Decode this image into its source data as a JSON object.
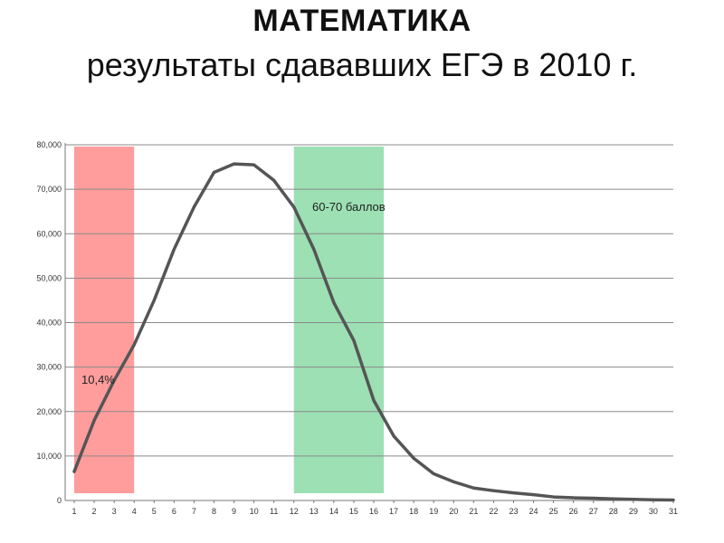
{
  "page": {
    "title": "МАТЕМАТИКА",
    "subtitle": "результаты сдававших ЕГЭ в 2010 г."
  },
  "chart_data": {
    "type": "line",
    "title": "МАТЕМАТИКА",
    "subtitle": "результаты сдававших ЕГЭ в 2010 г.",
    "xlabel": "",
    "ylabel": "",
    "x": [
      1,
      2,
      3,
      4,
      5,
      6,
      7,
      8,
      9,
      10,
      11,
      12,
      13,
      14,
      15,
      16,
      17,
      18,
      19,
      20,
      21,
      22,
      23,
      24,
      25,
      26,
      27,
      28,
      29,
      30,
      31
    ],
    "series": [
      {
        "values": [
          6500,
          18000,
          27000,
          35000,
          45000,
          56500,
          66000,
          73800,
          75700,
          75500,
          72000,
          66000,
          56500,
          44500,
          36000,
          22500,
          14500,
          9500,
          6000,
          4200,
          2800,
          2200,
          1700,
          1300,
          800,
          600,
          500,
          350,
          250,
          150,
          100
        ],
        "color": "#555555"
      }
    ],
    "ylim": [
      0,
      80000
    ],
    "yticks": [
      "0",
      "10,000",
      "20,000",
      "30,000",
      "40,000",
      "50,000",
      "60,000",
      "70,000",
      "80,000"
    ],
    "xticks": [
      "1",
      "2",
      "3",
      "4",
      "5",
      "6",
      "7",
      "8",
      "9",
      "10",
      "11",
      "12",
      "13",
      "14",
      "15",
      "16",
      "17",
      "18",
      "19",
      "20",
      "21",
      "22",
      "23",
      "24",
      "25",
      "26",
      "27",
      "28",
      "29",
      "30",
      "31"
    ],
    "grid": true,
    "bands": [
      {
        "from": 1,
        "to": 4,
        "color": "#ff9c9c",
        "label": "10,4%"
      },
      {
        "from": 12,
        "to": 16.5,
        "color": "#9ce0b4",
        "label": "60-70 баллов"
      }
    ]
  }
}
